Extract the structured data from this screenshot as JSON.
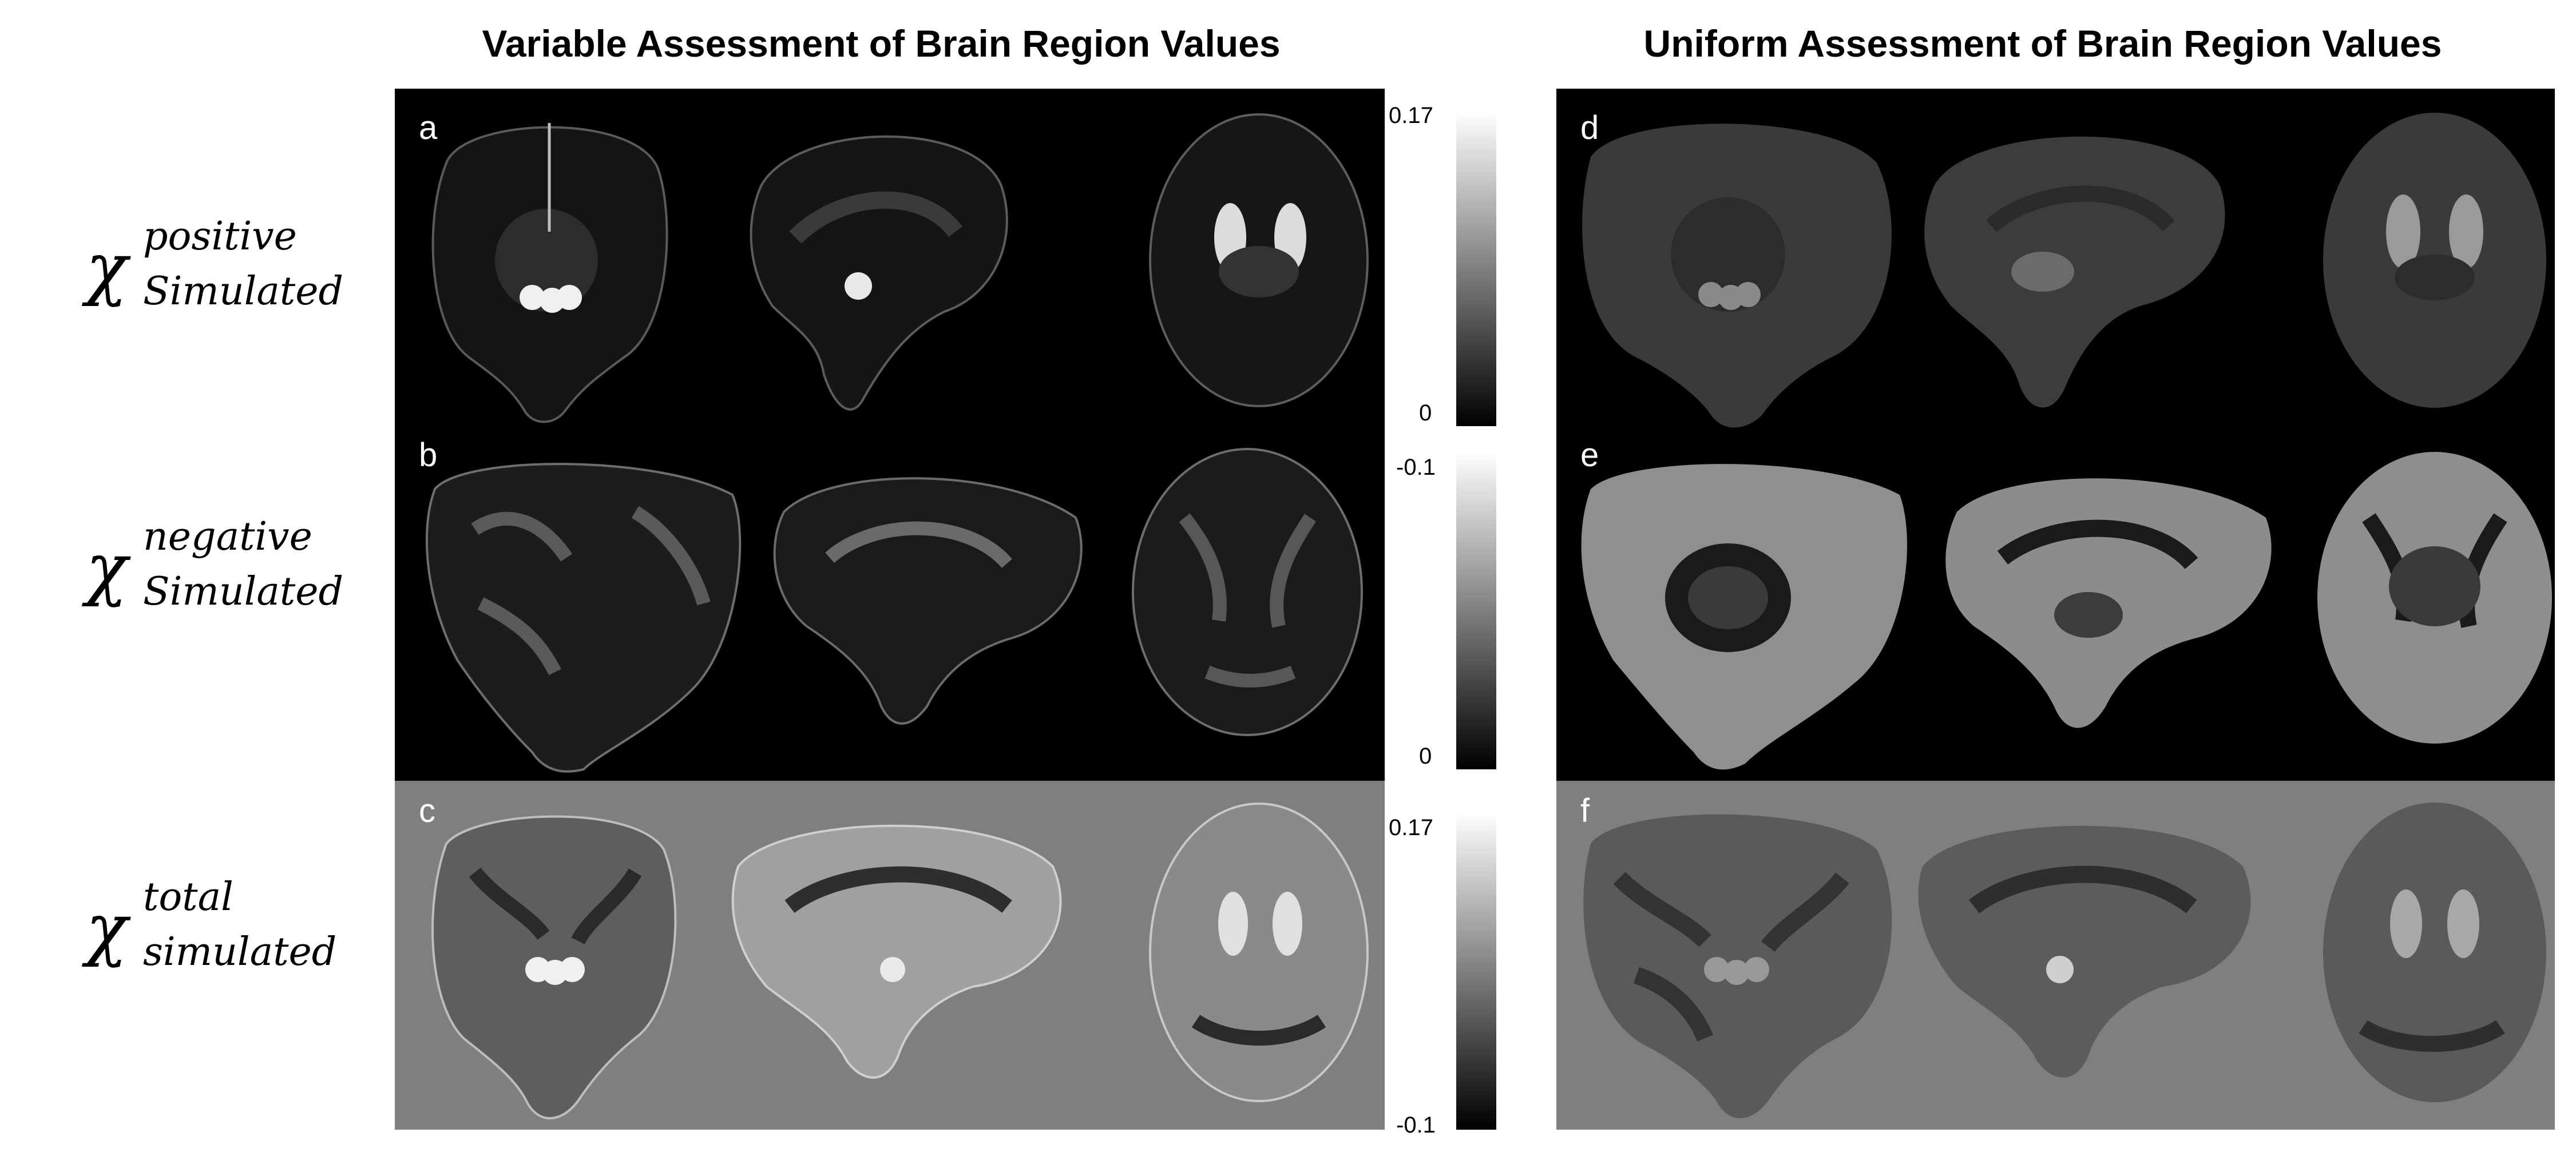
{
  "titles": {
    "left": "Variable Assessment of Brain Region Values",
    "right": "Uniform Assessment of Brain Region Values"
  },
  "row_labels": [
    {
      "symbol": "χ",
      "superscript": "positive",
      "subscript": "Simulated"
    },
    {
      "symbol": "χ",
      "superscript": "negative",
      "subscript": "Simulated"
    },
    {
      "symbol": "χ",
      "superscript": "total",
      "subscript": "simulated"
    }
  ],
  "panels": {
    "a": "a",
    "b": "b",
    "c": "c",
    "d": "d",
    "e": "e",
    "f": "f"
  },
  "colorbars": [
    {
      "top": "0.17",
      "bottom": "0"
    },
    {
      "top": "-0.1",
      "bottom": "0"
    },
    {
      "top": "0.17",
      "bottom": "-0.1"
    }
  ],
  "colors": {
    "panel_black": "#000000",
    "panel_gray": "#7f7f7f",
    "brain_dark": "#3a3a3a",
    "brain_mid": "#8a8a8a",
    "brain_light": "#d8d8d8"
  }
}
